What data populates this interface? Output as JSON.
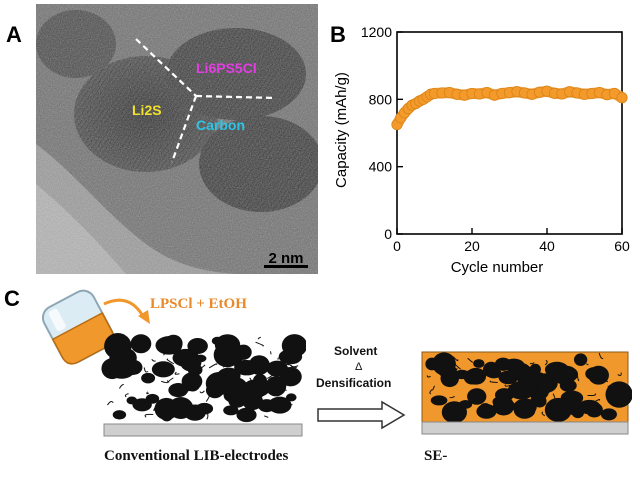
{
  "panel_a": {
    "letter": "A",
    "labels": {
      "phase1": "Li6PS5Cl",
      "phase2": "Li2S",
      "phase3": "Carbon"
    },
    "scale_bar": "2 nm",
    "colors": {
      "phase1": "#e33de3",
      "phase2": "#f2e12a",
      "phase3": "#2ec4e6"
    }
  },
  "panel_b": {
    "letter": "B"
  },
  "panel_c": {
    "letter": "C",
    "solution_label": "LPSCl + EtOH",
    "step_title": "Solvent",
    "step_symbol": "Δ",
    "step_process": "Densification",
    "left_caption": "Conventional LIB-electrodes",
    "right_caption": "SE-",
    "colors": {
      "solution": "#f0982c",
      "current_collector": "#cfcfcf"
    }
  },
  "chart_data": {
    "type": "scatter",
    "x": [
      0,
      1,
      2,
      3,
      4,
      5,
      6,
      7,
      8,
      9,
      10,
      12,
      14,
      16,
      18,
      20,
      22,
      24,
      26,
      28,
      30,
      32,
      34,
      36,
      38,
      40,
      42,
      44,
      46,
      48,
      50,
      52,
      54,
      56,
      58,
      60
    ],
    "y": [
      650,
      690,
      720,
      745,
      765,
      775,
      790,
      800,
      815,
      830,
      835,
      838,
      840,
      830,
      825,
      835,
      832,
      840,
      825,
      835,
      840,
      845,
      838,
      830,
      842,
      848,
      836,
      832,
      845,
      838,
      830,
      835,
      840,
      828,
      835,
      810
    ],
    "xlabel": "Cycle number",
    "ylabel": "Capacity (mAh/g)",
    "xlim": [
      0,
      60
    ],
    "ylim": [
      0,
      1200
    ],
    "xticks": [
      0,
      20,
      40,
      60
    ],
    "yticks": [
      0,
      400,
      800,
      1200
    ],
    "marker_color": "#f39a2b",
    "grid": false
  }
}
